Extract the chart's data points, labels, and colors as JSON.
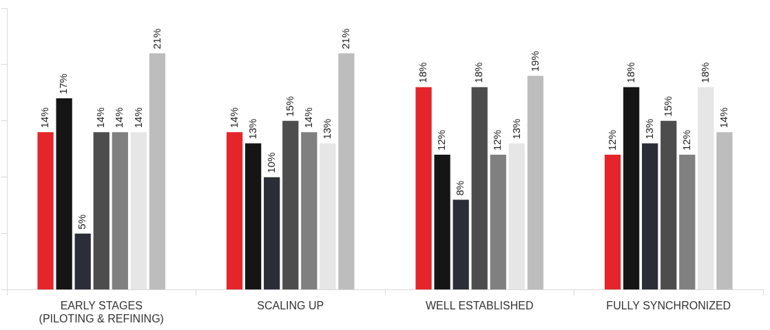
{
  "chart_data": {
    "type": "bar",
    "categories": [
      "EARLY STAGES\n(PILOTING & REFINING)",
      "SCALING UP",
      "WELL ESTABLISHED",
      "FULLY SYNCHRONIZED"
    ],
    "series": [
      {
        "color": "#e4262a",
        "values": [
          14,
          14,
          18,
          12
        ],
        "value_labels": [
          "14%",
          "14%",
          "18%",
          "12%"
        ]
      },
      {
        "color": "#151515",
        "values": [
          17,
          13,
          12,
          18
        ],
        "value_labels": [
          "17%",
          "13%",
          "12%",
          "18%"
        ]
      },
      {
        "color": "#2b2e36",
        "values": [
          5,
          10,
          8,
          13
        ],
        "value_labels": [
          "5%",
          "10%",
          "8%",
          "13%"
        ]
      },
      {
        "color": "#4d4d4d",
        "values": [
          14,
          15,
          18,
          15
        ],
        "value_labels": [
          "14%",
          "15%",
          "18%",
          "15%"
        ]
      },
      {
        "color": "#808080",
        "values": [
          14,
          14,
          12,
          12
        ],
        "value_labels": [
          "14%",
          "14%",
          "12%",
          "12%"
        ]
      },
      {
        "color": "#e6e6e6",
        "values": [
          14,
          13,
          13,
          18
        ],
        "value_labels": [
          "14%",
          "13%",
          "13%",
          "18%"
        ]
      },
      {
        "color": "#bdbdbe",
        "values": [
          21,
          21,
          19,
          14
        ],
        "value_labels": [
          "21%",
          "21%",
          "19%",
          "14%"
        ]
      }
    ],
    "ylim": [
      0,
      25
    ],
    "yticks": [
      {
        "value": 0,
        "label": null
      },
      {
        "value": 5,
        "label": null
      },
      {
        "value": 10,
        "label": null
      },
      {
        "value": 15,
        "label": null
      },
      {
        "value": 20,
        "label": null
      },
      {
        "value": 25,
        "label": null
      }
    ],
    "tick_labels": "x",
    "grid": false,
    "legend": false
  }
}
